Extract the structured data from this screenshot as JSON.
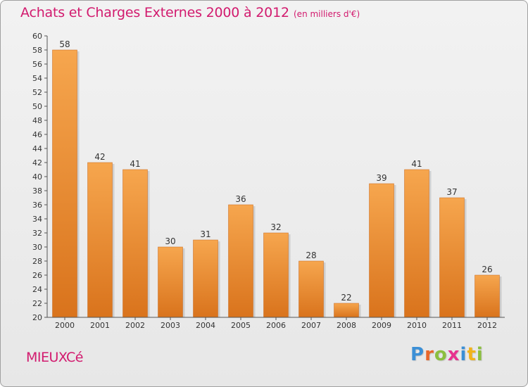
{
  "header": {
    "title": "Achats et Charges Externes 2000 à 2012",
    "subtitle": "(en milliers d'€)"
  },
  "footer": {
    "commune": "MIEUXCé",
    "logo": {
      "letters": [
        "P",
        "r",
        "o",
        "x",
        "i",
        "t",
        "i"
      ],
      "colors": [
        "#3b8fd6",
        "#e8662a",
        "#8cbf3f",
        "#e7328e",
        "#3b8fd6",
        "#f2b31a",
        "#8cbf3f"
      ]
    }
  },
  "chart_data": {
    "type": "bar",
    "title": "Achats et Charges Externes 2000 à 2012",
    "subtitle": "(en milliers d'€)",
    "categories": [
      "2000",
      "2001",
      "2002",
      "2003",
      "2004",
      "2005",
      "2006",
      "2007",
      "2008",
      "2009",
      "2010",
      "2011",
      "2012"
    ],
    "values": [
      58,
      42,
      41,
      30,
      31,
      36,
      32,
      28,
      22,
      39,
      41,
      37,
      26
    ],
    "xlabel": "",
    "ylabel": "",
    "ylim": [
      20,
      60
    ],
    "yticks": [
      20,
      22,
      24,
      26,
      28,
      30,
      32,
      34,
      36,
      38,
      40,
      42,
      44,
      46,
      48,
      50,
      52,
      54,
      56,
      58,
      60
    ],
    "grid": false,
    "data_labels": true,
    "colors": {
      "bar_top": "#f6a64e",
      "bar_bottom": "#d9731c",
      "axis": "#555555",
      "text": "#333333"
    }
  }
}
